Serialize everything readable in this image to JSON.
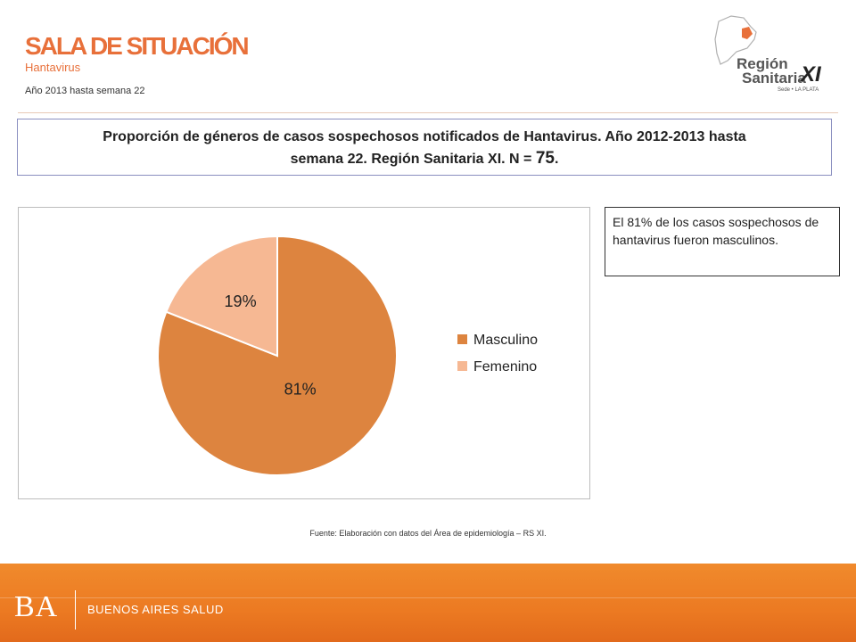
{
  "header": {
    "title": "SALA DE SITUACIÓN",
    "subtitle": "Hantavirus",
    "period": "Año 2013 hasta semana 22"
  },
  "logo": {
    "line1": "Región",
    "line2": "Sanitaria",
    "line3": "XI",
    "caption": "Sede • LA PLATA"
  },
  "chart_title": {
    "line1": "Proporción de géneros de casos sospechosos notificados de Hantavirus. Año 2012-2013 hasta",
    "line2a": "semana 22. Región Sanitaria XI. N = ",
    "n_value": "75",
    "line2b": "."
  },
  "note": "El 81% de los casos sospechosos de hantavirus fueron masculinos.",
  "source": "Fuente: Elaboración con datos del Área de epidemiología – RS XI.",
  "footer": {
    "ba": "BA",
    "text": "BUENOS AIRES SALUD"
  },
  "colors": {
    "accent": "#e8703a",
    "masculino": "#dd843f",
    "femenino": "#f6b893"
  },
  "chart_data": {
    "type": "pie",
    "categories": [
      "Masculino",
      "Femenino"
    ],
    "values": [
      81,
      19
    ],
    "labels": [
      "81%",
      "19%"
    ],
    "legend": "right"
  }
}
